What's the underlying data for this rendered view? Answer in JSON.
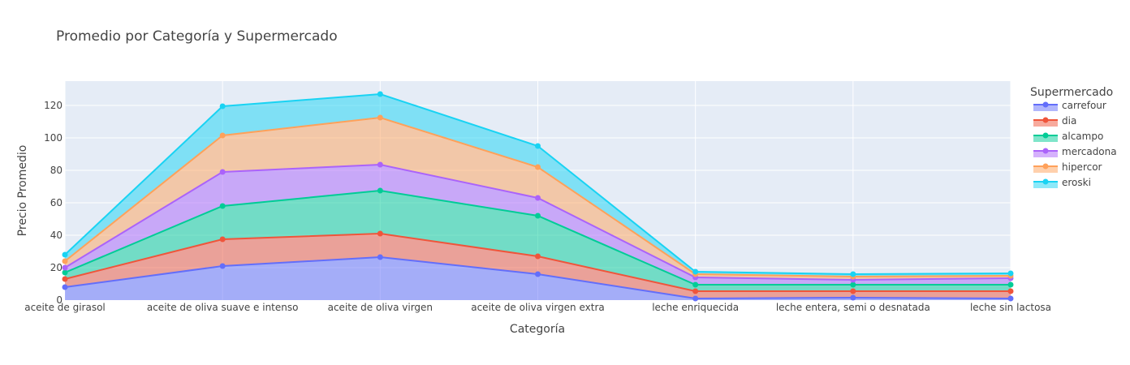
{
  "chart_data": {
    "type": "area",
    "stacked": true,
    "title": "Promedio por Categoría y Supermercado",
    "xlabel": "Categoría",
    "ylabel": "Precio Promedio",
    "ylim": [
      0,
      135
    ],
    "yticks": [
      0,
      20,
      40,
      60,
      80,
      100,
      120
    ],
    "grid": true,
    "legend_title": "Supermercado",
    "legend_position": "right",
    "categories": [
      "aceite de girasol",
      "aceite de oliva suave e intenso",
      "aceite de oliva virgen",
      "aceite de oliva virgen extra",
      "leche enriquecida",
      "leche entera, semi o desnatada",
      "leche sin lactosa"
    ],
    "series": [
      {
        "name": "carrefour",
        "color": "#636efa",
        "values": [
          8,
          21,
          26.5,
          16,
          1,
          1.5,
          1
        ]
      },
      {
        "name": "dia",
        "color": "#ef553b",
        "values": [
          5,
          16.5,
          14.5,
          11,
          4.5,
          4,
          4.5
        ]
      },
      {
        "name": "alcampo",
        "color": "#00cc96",
        "values": [
          4,
          20.5,
          26.5,
          25,
          4,
          4,
          4
        ]
      },
      {
        "name": "mercadona",
        "color": "#ab63fa",
        "values": [
          3,
          21,
          16,
          11,
          4.5,
          3,
          4
        ]
      },
      {
        "name": "hipercor",
        "color": "#ffa15a",
        "values": [
          4,
          22.5,
          29,
          19,
          2,
          2,
          1.5
        ]
      },
      {
        "name": "eroski",
        "color": "#19d3f3",
        "values": [
          4,
          18,
          14.5,
          13,
          1.5,
          1.5,
          1.5
        ]
      }
    ]
  }
}
